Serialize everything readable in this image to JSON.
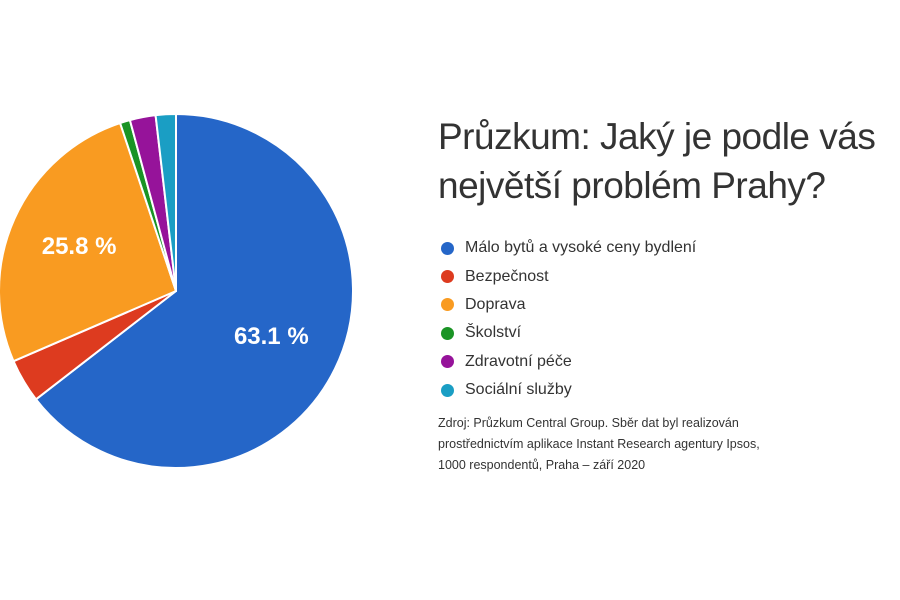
{
  "chart_data": {
    "type": "pie",
    "title_lines": [
      "Průzkum: Jaký je podle vás",
      "největší problém Prahy?"
    ],
    "categories": [
      "Málo bytů a vysoké ceny bydlení",
      "Bezpečnost",
      "Doprava",
      "Školství",
      "Zdravotní péče",
      "Sociální služby"
    ],
    "values": [
      63.1,
      3.9,
      25.8,
      0.9,
      2.3,
      1.8
    ],
    "data_labels": [
      "63.1 %",
      "",
      "25.8 %",
      "",
      "",
      ""
    ],
    "colors": [
      "#2566c8",
      "#dd3b1f",
      "#f99b21",
      "#1a9425",
      "#96139a",
      "#1a9ec4"
    ],
    "legend_position": "right",
    "source_lines": [
      "Zdroj: Průzkum Central Group. Sběr dat byl realizován",
      "prostřednictvím aplikace Instant Research agentury Ipsos,",
      "1000 respondentů, Praha – září 2020"
    ]
  }
}
